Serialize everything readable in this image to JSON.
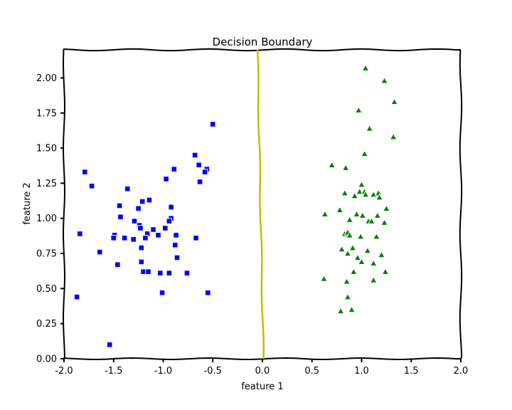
{
  "chart_data": {
    "type": "scatter",
    "title": "Decision Boundary",
    "xlabel": "feature 1",
    "ylabel": "feature 2",
    "xlim": [
      -2.0,
      2.0
    ],
    "ylim": [
      0.0,
      2.2
    ],
    "x_ticks": [
      "-2.0",
      "-1.5",
      "-1.0",
      "-0.5",
      "0.0",
      "0.5",
      "1.0",
      "1.5",
      "2.0"
    ],
    "y_ticks": [
      "0.00",
      "0.25",
      "0.50",
      "0.75",
      "1.00",
      "1.25",
      "1.50",
      "1.75",
      "2.00"
    ],
    "grid": false,
    "colors": {
      "class_0": "#0000ff",
      "class_1": "#008000",
      "boundary": "#bfbf00"
    },
    "boundary": {
      "x": [
        -0.05,
        0.01
      ],
      "y": [
        2.2,
        0.0
      ]
    },
    "series": [
      {
        "marker": "square",
        "color": "#0000ff",
        "points": [
          [
            -0.5,
            1.67
          ],
          [
            -0.68,
            1.45
          ],
          [
            -0.64,
            1.38
          ],
          [
            -0.56,
            1.35
          ],
          [
            -0.58,
            1.33
          ],
          [
            -0.89,
            1.35
          ],
          [
            -0.97,
            1.28
          ],
          [
            -0.63,
            1.26
          ],
          [
            -1.79,
            1.33
          ],
          [
            -1.72,
            1.23
          ],
          [
            -1.36,
            1.21
          ],
          [
            -1.21,
            1.12
          ],
          [
            -1.14,
            1.13
          ],
          [
            -1.44,
            1.09
          ],
          [
            -1.25,
            1.07
          ],
          [
            -0.92,
            1.08
          ],
          [
            -1.43,
            1.01
          ],
          [
            -0.92,
            1.0
          ],
          [
            -0.94,
            0.98
          ],
          [
            -1.29,
            0.98
          ],
          [
            -1.24,
            0.95
          ],
          [
            -1.23,
            0.93
          ],
          [
            -0.98,
            0.93
          ],
          [
            -1.1,
            0.92
          ],
          [
            -1.16,
            0.89
          ],
          [
            -1.05,
            0.88
          ],
          [
            -0.87,
            0.88
          ],
          [
            -1.49,
            0.88
          ],
          [
            -1.5,
            0.86
          ],
          [
            -1.39,
            0.86
          ],
          [
            -1.3,
            0.85
          ],
          [
            -1.18,
            0.86
          ],
          [
            -0.67,
            0.86
          ],
          [
            -1.84,
            0.89
          ],
          [
            -0.88,
            0.81
          ],
          [
            -1.22,
            0.79
          ],
          [
            -1.64,
            0.76
          ],
          [
            -0.86,
            0.72
          ],
          [
            -1.22,
            0.69
          ],
          [
            -1.46,
            0.67
          ],
          [
            -1.2,
            0.62
          ],
          [
            -1.15,
            0.62
          ],
          [
            -1.03,
            0.61
          ],
          [
            -0.94,
            0.61
          ],
          [
            -0.76,
            0.61
          ],
          [
            -1.01,
            0.47
          ],
          [
            -0.55,
            0.47
          ],
          [
            -1.87,
            0.44
          ],
          [
            -1.54,
            0.1
          ]
        ]
      },
      {
        "marker": "triangle",
        "color": "#008000",
        "points": [
          [
            1.04,
            2.07
          ],
          [
            1.23,
            1.98
          ],
          [
            1.33,
            1.83
          ],
          [
            0.97,
            1.77
          ],
          [
            1.08,
            1.64
          ],
          [
            1.32,
            1.58
          ],
          [
            1.03,
            1.46
          ],
          [
            0.7,
            1.38
          ],
          [
            0.84,
            1.36
          ],
          [
            1.0,
            1.24
          ],
          [
            0.98,
            1.19
          ],
          [
            1.03,
            1.19
          ],
          [
            0.83,
            1.18
          ],
          [
            1.12,
            1.17
          ],
          [
            1.17,
            1.18
          ],
          [
            1.18,
            1.15
          ],
          [
            1.04,
            1.17
          ],
          [
            0.93,
            1.16
          ],
          [
            1.25,
            1.07
          ],
          [
            0.78,
            1.06
          ],
          [
            0.63,
            1.03
          ],
          [
            0.95,
            1.03
          ],
          [
            1.01,
            1.02
          ],
          [
            1.16,
            1.02
          ],
          [
            0.88,
            0.99
          ],
          [
            1.07,
            0.98
          ],
          [
            1.1,
            0.98
          ],
          [
            1.23,
            0.97
          ],
          [
            0.83,
            0.89
          ],
          [
            0.86,
            0.9
          ],
          [
            0.88,
            0.88
          ],
          [
            0.99,
            0.87
          ],
          [
            1.15,
            0.87
          ],
          [
            0.8,
            0.78
          ],
          [
            0.91,
            0.79
          ],
          [
            1.06,
            0.77
          ],
          [
            0.86,
            0.75
          ],
          [
            1.2,
            0.74
          ],
          [
            0.96,
            0.72
          ],
          [
            1.0,
            0.69
          ],
          [
            1.12,
            0.68
          ],
          [
            0.92,
            0.62
          ],
          [
            1.24,
            0.62
          ],
          [
            0.62,
            0.57
          ],
          [
            1.12,
            0.56
          ],
          [
            0.85,
            0.55
          ],
          [
            0.86,
            0.44
          ],
          [
            0.9,
            0.35
          ],
          [
            0.79,
            0.34
          ]
        ]
      }
    ]
  }
}
